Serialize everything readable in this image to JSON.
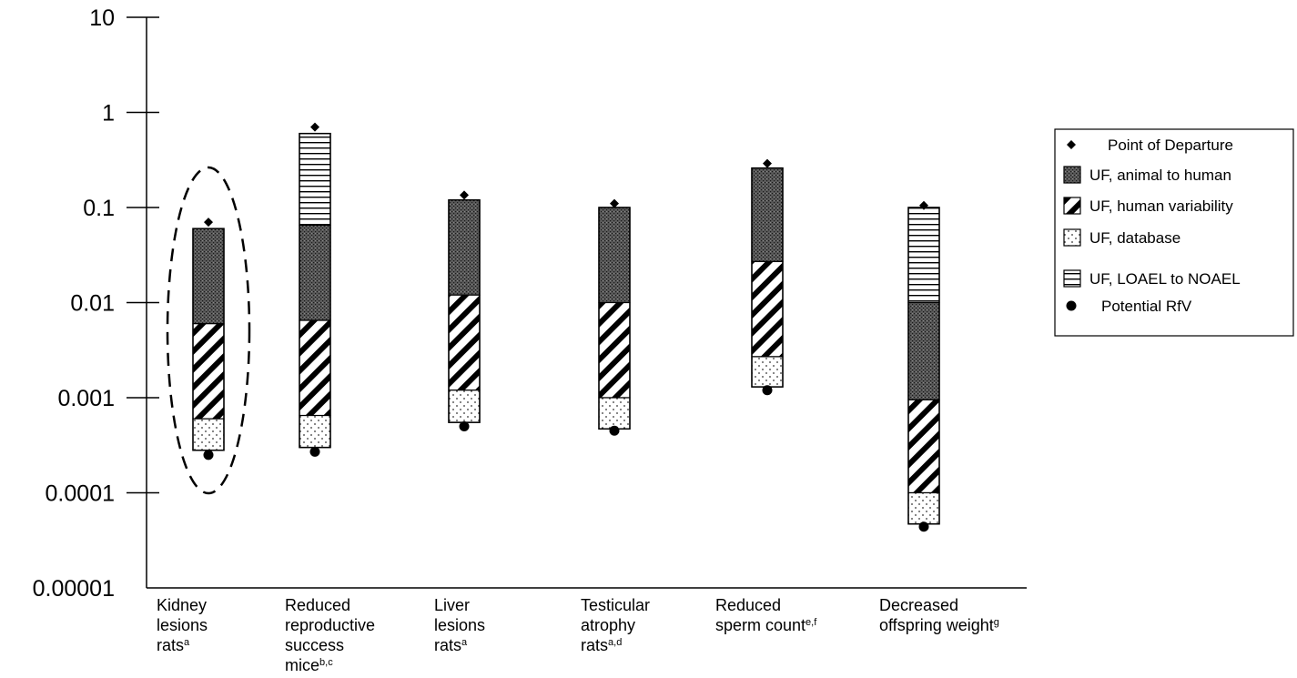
{
  "chart_data": {
    "type": "bar",
    "y_scale": "log",
    "ylim": [
      1e-05,
      10
    ],
    "ytick_labels": [
      "10",
      "1",
      "0.1",
      "0.01",
      "0.001",
      "0.0001",
      "0.00001"
    ],
    "ytick_values": [
      10,
      1,
      0.1,
      0.01,
      0.001,
      0.0001,
      1e-05
    ],
    "categories": [
      {
        "lines": [
          {
            "t": "Kidney"
          },
          {
            "t": "lesions"
          },
          {
            "t": "rats",
            "sup": "a"
          }
        ]
      },
      {
        "lines": [
          {
            "t": "Reduced"
          },
          {
            "t": "reproductive"
          },
          {
            "t": "success"
          },
          {
            "t": "mice",
            "sup": "b,c"
          }
        ]
      },
      {
        "lines": [
          {
            "t": "Liver"
          },
          {
            "t": "lesions"
          },
          {
            "t": "rats",
            "sup": "a"
          }
        ]
      },
      {
        "lines": [
          {
            "t": "Testicular"
          },
          {
            "t": "atrophy"
          },
          {
            "t": "rats",
            "sup": "a,d"
          }
        ]
      },
      {
        "lines": [
          {
            "t": "Reduced"
          },
          {
            "t": "sperm count",
            "sup": "e,f"
          }
        ]
      },
      {
        "lines": [
          {
            "t": "Decreased"
          },
          {
            "t": "offspring weight",
            "sup": "g"
          }
        ]
      }
    ],
    "bars": [
      {
        "pod": 0.07,
        "rfv": 0.00025,
        "segments": [
          {
            "type": "animal",
            "top": 0.06,
            "bottom": 0.006
          },
          {
            "type": "human",
            "top": 0.006,
            "bottom": 0.0006
          },
          {
            "type": "database",
            "top": 0.0006,
            "bottom": 0.00028
          }
        ]
      },
      {
        "pod": 0.7,
        "rfv": 0.00027,
        "segments": [
          {
            "type": "loael",
            "top": 0.6,
            "bottom": 0.065
          },
          {
            "type": "animal",
            "top": 0.065,
            "bottom": 0.0065
          },
          {
            "type": "human",
            "top": 0.0065,
            "bottom": 0.00065
          },
          {
            "type": "database",
            "top": 0.00065,
            "bottom": 0.0003
          }
        ]
      },
      {
        "pod": 0.135,
        "rfv": 0.0005,
        "segments": [
          {
            "type": "animal",
            "top": 0.12,
            "bottom": 0.012
          },
          {
            "type": "human",
            "top": 0.012,
            "bottom": 0.0012
          },
          {
            "type": "database",
            "top": 0.0012,
            "bottom": 0.00055
          }
        ]
      },
      {
        "pod": 0.11,
        "rfv": 0.00045,
        "segments": [
          {
            "type": "animal",
            "top": 0.1,
            "bottom": 0.01
          },
          {
            "type": "human",
            "top": 0.01,
            "bottom": 0.001
          },
          {
            "type": "database",
            "top": 0.001,
            "bottom": 0.00047
          }
        ]
      },
      {
        "pod": 0.29,
        "rfv": 0.0012,
        "segments": [
          {
            "type": "animal",
            "top": 0.26,
            "bottom": 0.027
          },
          {
            "type": "human",
            "top": 0.027,
            "bottom": 0.0027
          },
          {
            "type": "database",
            "top": 0.0027,
            "bottom": 0.0013
          }
        ]
      },
      {
        "pod": 0.105,
        "rfv": 4.4e-05,
        "segments": [
          {
            "type": "loael",
            "top": 0.1,
            "bottom": 0.01
          },
          {
            "type": "animal",
            "top": 0.01,
            "bottom": 0.00095
          },
          {
            "type": "human",
            "top": 0.00095,
            "bottom": 0.0001
          },
          {
            "type": "database",
            "top": 0.0001,
            "bottom": 4.7e-05
          }
        ]
      }
    ],
    "highlighted_category_index": 0,
    "legend": {
      "placement": "right",
      "entries": [
        {
          "key": "pod",
          "label": "Point of Departure"
        },
        {
          "key": "animal",
          "label": "UF, animal to human"
        },
        {
          "key": "human",
          "label": "UF, human variability"
        },
        {
          "key": "database",
          "label": "UF, database"
        },
        {
          "key": "loael",
          "label": "UF, LOAEL to NOAEL"
        },
        {
          "key": "rfv",
          "label": "Potential RfV"
        }
      ]
    },
    "grid": false
  }
}
